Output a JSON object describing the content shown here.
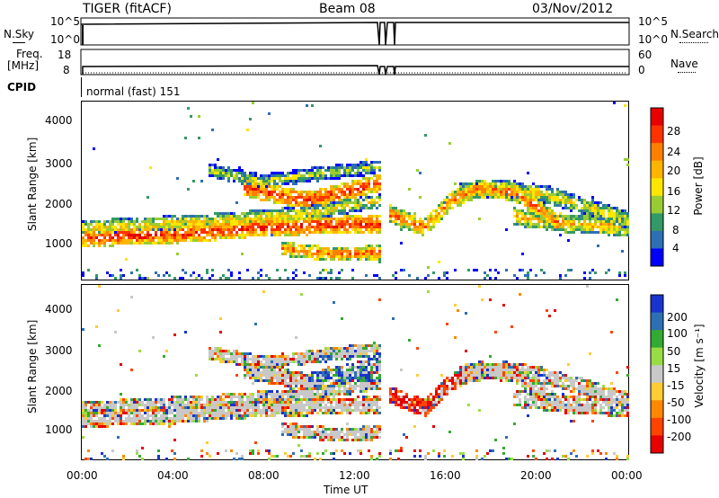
{
  "header": {
    "radar": "TIGER (fitACF)",
    "beam": "Beam 08",
    "date": "03/Nov/2012"
  },
  "status_panels": {
    "nsky_label": "N.Sky",
    "nsky_ticks": [
      "10^5",
      "10^0"
    ],
    "nsearch_label": "N.Search",
    "nsearch_ticks": [
      "10^5",
      "10^0"
    ],
    "freq_label_top": "Freq.",
    "freq_label_unit": "[MHz]",
    "freq_ticks": [
      "18",
      "8"
    ],
    "nave_label": "Nave",
    "nave_ticks": [
      "60",
      "0"
    ],
    "cpid_label": "CPID",
    "cpid_value": "normal (fast) 151"
  },
  "chart_data": [
    {
      "type": "heatmap",
      "title": "",
      "ylabel": "Slant Range [km]",
      "xlabel": "Time UT",
      "ylim": [
        200,
        4600
      ],
      "y_ticks": [
        "4000",
        "3000",
        "2000",
        "1000"
      ],
      "x_ticks": [
        "00:00",
        "04:00",
        "08:00",
        "12:00",
        "16:00",
        "20:00",
        "00:00"
      ],
      "colorbar_label": "Power [dB]",
      "colorbar_ticks": [
        "28",
        "24",
        "20",
        "16",
        "12",
        "8",
        "4"
      ],
      "colorbar_colors": [
        "#e60000",
        "#ff3300",
        "#ff8000",
        "#ffb400",
        "#ffe600",
        "#99cc33",
        "#339966",
        "#2d6fb4",
        "#0000ff"
      ]
    },
    {
      "type": "heatmap",
      "title": "",
      "ylabel": "Slant Range [km]",
      "xlabel": "Time UT",
      "ylim": [
        200,
        4600
      ],
      "y_ticks": [
        "4000",
        "3000",
        "2000",
        "1000"
      ],
      "x_ticks": [
        "00:00",
        "04:00",
        "08:00",
        "12:00",
        "16:00",
        "20:00",
        "00:00"
      ],
      "colorbar_label": "Velocity [m s⁻¹]",
      "colorbar_ticks": [
        "200",
        "100",
        "50",
        "15",
        "-15",
        "-50",
        "-100",
        "-200"
      ],
      "colorbar_colors": [
        "#1a33cc",
        "#2d6fb4",
        "#33aa33",
        "#99dd44",
        "#c8c8c8",
        "#ffcc33",
        "#ff8800",
        "#ff4400",
        "#e60000"
      ]
    }
  ]
}
